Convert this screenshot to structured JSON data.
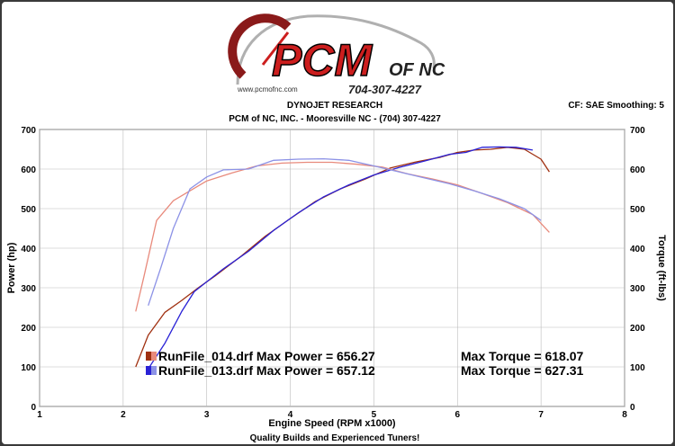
{
  "logo": {
    "brand": "PCM",
    "suffix": "OF NC",
    "phone": "704-307-4227",
    "website": "www.pcmofnc.com"
  },
  "header": {
    "title": "DYNOJET RESEARCH",
    "subtitle": "PCM of NC, INC. - Mooresville NC - (704) 307-4227",
    "settings": "CF: SAE  Smoothing: 5"
  },
  "footer": {
    "tagline": "Quality Builds and Experienced Tuners!"
  },
  "colors": {
    "run014_power": "#a03010",
    "run014_torque": "#e88a7c",
    "run013_power": "#2a22d6",
    "run013_torque": "#8c92e6",
    "logo_red": "#cc1e1e",
    "background": "#ffffff",
    "grid": "#bbbbbb"
  },
  "chart_data": {
    "type": "line",
    "title": "DYNOJET RESEARCH",
    "xlabel": "Engine Speed (RPM x1000)",
    "ylabel": "Power (hp)",
    "y2label": "Torque (ft-lbs)",
    "xlim": [
      1,
      8
    ],
    "ylim": [
      0,
      700
    ],
    "y2lim": [
      0,
      700
    ],
    "xticks": [
      1,
      2,
      3,
      4,
      5,
      6,
      7,
      8
    ],
    "yticks": [
      0,
      100,
      200,
      300,
      400,
      500,
      600,
      700
    ],
    "grid": true,
    "legend_position": "bottom-left",
    "legend": [
      {
        "file": "RunFile_014.drf",
        "power_label": "Max Power = 656.27",
        "torque_label": "Max Torque = 618.07"
      },
      {
        "file": "RunFile_013.drf",
        "power_label": "Max Power = 657.12",
        "torque_label": "Max Torque = 627.31"
      }
    ],
    "series": [
      {
        "name": "RunFile_014.drf Power",
        "axis": "left",
        "color": "#a03010",
        "x": [
          2.15,
          2.3,
          2.5,
          2.7,
          2.9,
          3.1,
          3.4,
          3.7,
          4.0,
          4.3,
          4.6,
          4.9,
          5.2,
          5.5,
          5.8,
          6.0,
          6.2,
          6.4,
          6.6,
          6.8,
          7.0,
          7.1
        ],
        "y": [
          100,
          180,
          238,
          268,
          300,
          330,
          378,
          430,
          475,
          518,
          550,
          575,
          603,
          618,
          630,
          642,
          648,
          650,
          655,
          650,
          625,
          593
        ]
      },
      {
        "name": "RunFile_013.drf Power",
        "axis": "left",
        "color": "#2a22d6",
        "x": [
          2.3,
          2.5,
          2.7,
          2.85,
          3.0,
          3.2,
          3.5,
          3.8,
          4.1,
          4.4,
          4.7,
          5.0,
          5.3,
          5.6,
          5.9,
          6.1,
          6.3,
          6.5,
          6.7,
          6.9
        ],
        "y": [
          95,
          160,
          240,
          290,
          315,
          348,
          392,
          445,
          490,
          530,
          560,
          585,
          604,
          620,
          637,
          642,
          655,
          656,
          655,
          648
        ]
      },
      {
        "name": "RunFile_014.drf Torque",
        "axis": "right",
        "color": "#e88a7c",
        "x": [
          2.15,
          2.25,
          2.4,
          2.6,
          2.8,
          3.0,
          3.3,
          3.6,
          3.9,
          4.2,
          4.5,
          4.8,
          5.1,
          5.4,
          5.7,
          6.0,
          6.3,
          6.6,
          6.9,
          7.1
        ],
        "y": [
          240,
          330,
          470,
          520,
          545,
          570,
          590,
          608,
          615,
          617,
          617,
          612,
          605,
          588,
          575,
          560,
          538,
          515,
          485,
          440
        ]
      },
      {
        "name": "RunFile_013.drf Torque",
        "axis": "right",
        "color": "#8c92e6",
        "x": [
          2.3,
          2.45,
          2.6,
          2.8,
          3.0,
          3.2,
          3.5,
          3.8,
          4.1,
          4.4,
          4.7,
          5.0,
          5.3,
          5.6,
          5.9,
          6.2,
          6.5,
          6.8,
          7.0
        ],
        "y": [
          255,
          350,
          450,
          550,
          580,
          598,
          600,
          622,
          625,
          626,
          622,
          608,
          593,
          578,
          563,
          545,
          525,
          500,
          470
        ]
      }
    ]
  }
}
